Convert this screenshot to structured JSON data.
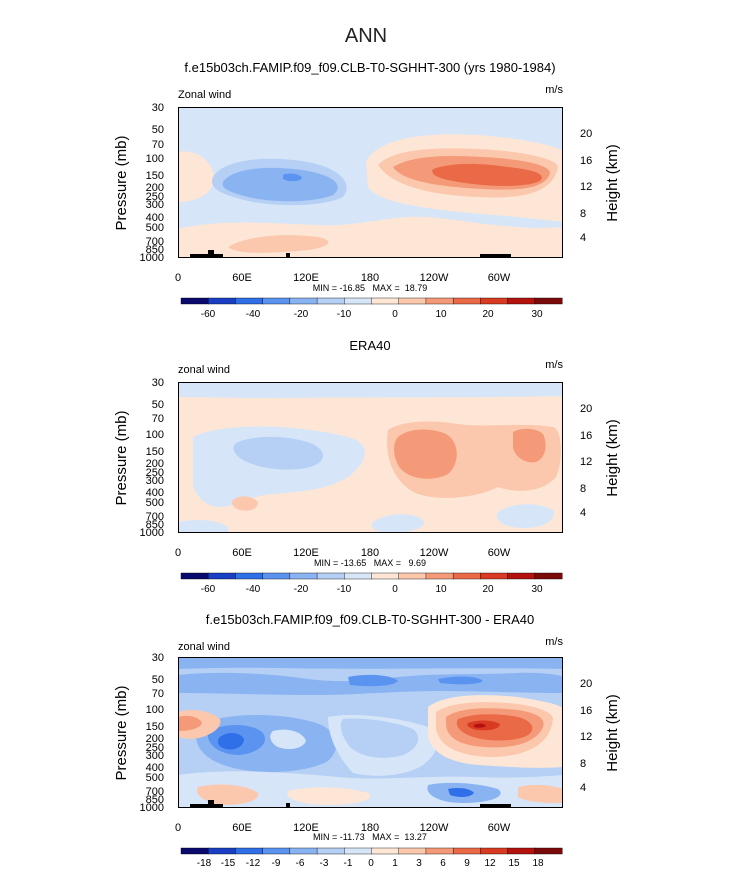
{
  "page_title": "ANN",
  "colorbar_colors": [
    "#0a0a6e",
    "#1a3fc4",
    "#2f6fe8",
    "#5b93f0",
    "#8ab3f2",
    "#b5cff5",
    "#d6e6f8",
    "#fde6d6",
    "#fbc8ad",
    "#f59a78",
    "#ea6a48",
    "#d93a22",
    "#b3120f",
    "#7a0a0a"
  ],
  "chart_data": [
    {
      "type": "heatmap",
      "title": "f.e15b03ch.FAMIP.f09_f09.CLB-T0-SGHHT-300 (yrs 1980-1984)",
      "corner_left": "Zonal wind",
      "corner_right": "m/s",
      "ylabel": "Pressure (mb)",
      "ylabel_right": "Height (km)",
      "pressure_ticks": [
        "30",
        "50",
        "70",
        "100",
        "150",
        "200",
        "250",
        "300",
        "400",
        "500",
        "700",
        "850",
        "1000"
      ],
      "height_ticks": [
        "20",
        "16",
        "12",
        "8",
        "4"
      ],
      "x_ticks": [
        "0",
        "60E",
        "120E",
        "180",
        "120W",
        "60W"
      ],
      "stats": "MIN = -16.85   MAX =  18.79",
      "colorbar_labels": [
        "-60",
        "-40",
        "-20",
        "-10",
        "0",
        "10",
        "20",
        "30"
      ],
      "min": -16.85,
      "max": 18.79
    },
    {
      "type": "heatmap",
      "title": "ERA40",
      "corner_left": "zonal wind",
      "corner_right": "m/s",
      "ylabel": "Pressure (mb)",
      "ylabel_right": "Height (km)",
      "pressure_ticks": [
        "30",
        "50",
        "70",
        "100",
        "150",
        "200",
        "250",
        "300",
        "400",
        "500",
        "700",
        "850",
        "1000"
      ],
      "height_ticks": [
        "20",
        "16",
        "12",
        "8",
        "4"
      ],
      "x_ticks": [
        "0",
        "60E",
        "120E",
        "180",
        "120W",
        "60W"
      ],
      "stats": "MIN = -13.65   MAX =   9.69",
      "colorbar_labels": [
        "-60",
        "-40",
        "-20",
        "-10",
        "0",
        "10",
        "20",
        "30"
      ],
      "min": -13.65,
      "max": 9.69
    },
    {
      "type": "heatmap",
      "title": "f.e15b03ch.FAMIP.f09_f09.CLB-T0-SGHHT-300 - ERA40",
      "corner_left": "zonal wind",
      "corner_right": "m/s",
      "ylabel": "Pressure (mb)",
      "ylabel_right": "Height (km)",
      "pressure_ticks": [
        "30",
        "50",
        "70",
        "100",
        "150",
        "200",
        "250",
        "300",
        "400",
        "500",
        "700",
        "850",
        "1000"
      ],
      "height_ticks": [
        "20",
        "16",
        "12",
        "8",
        "4"
      ],
      "x_ticks": [
        "0",
        "60E",
        "120E",
        "180",
        "120W",
        "60W"
      ],
      "stats": "MIN = -11.73   MAX =  13.27",
      "colorbar_labels": [
        "-18",
        "-15",
        "-12",
        "-9",
        "-6",
        "-3",
        "-1",
        "0",
        "1",
        "3",
        "6",
        "9",
        "12",
        "15",
        "18"
      ],
      "min": -11.73,
      "max": 13.27
    }
  ]
}
